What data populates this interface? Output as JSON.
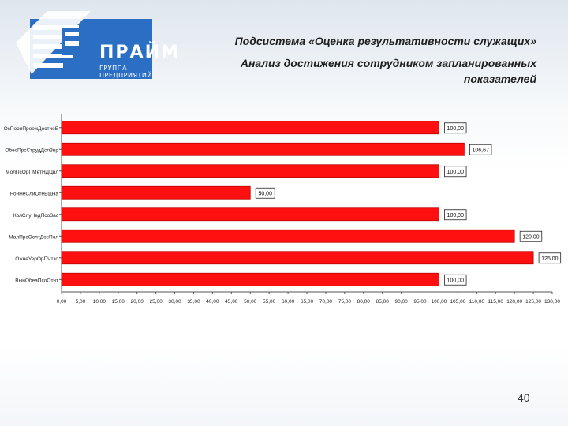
{
  "header": {
    "logo_title": "ПРАЙМ",
    "logo_subtitle": "ГРУППА ПРЕДПРИЯТИЙ",
    "title_line1": "Подсистема «Оценка результативности служащих»",
    "title_line2": "Анализ достижения сотрудником  запланированных показателей"
  },
  "page_number": "40",
  "colors": {
    "bar": "#ff1010",
    "bar_stroke": "#b80000",
    "brand_blue": "#2a6fc4"
  },
  "chart_data": {
    "type": "bar",
    "orientation": "horizontal",
    "categories": [
      "ОсПоонПроежДостиеБ",
      "ОбесПрсСтрудДслЗвр",
      "МолПсОрПМетНДЦвл",
      "РонНеСлиОтеБщНа",
      "КолСлуНедПсоЗас",
      "МалПрсОслтДсеПол",
      "ОжнеУерОрПЧтзо",
      "ВынОбеаПсоОтнт"
    ],
    "values": [
      100,
      106.67,
      100,
      50,
      100,
      120,
      125,
      100
    ],
    "value_labels": [
      "100,00",
      "106,67",
      "100,00",
      "50,00",
      "100,00",
      "120,00",
      "125,00",
      "100,00"
    ],
    "x_ticks": [
      "0,00",
      "5,00",
      "10,00",
      "15,00",
      "20,00",
      "25,00",
      "30,00",
      "35,00",
      "40,00",
      "45,00",
      "50,00",
      "55,00",
      "60,00",
      "65,00",
      "70,00",
      "75,00",
      "80,00",
      "85,00",
      "90,00",
      "95,00",
      "100,00",
      "105,00",
      "110,00",
      "115,00",
      "120,00",
      "125,00",
      "130,00"
    ],
    "xlim": [
      0,
      130
    ],
    "xlabel": "",
    "ylabel": "",
    "grid": false
  }
}
